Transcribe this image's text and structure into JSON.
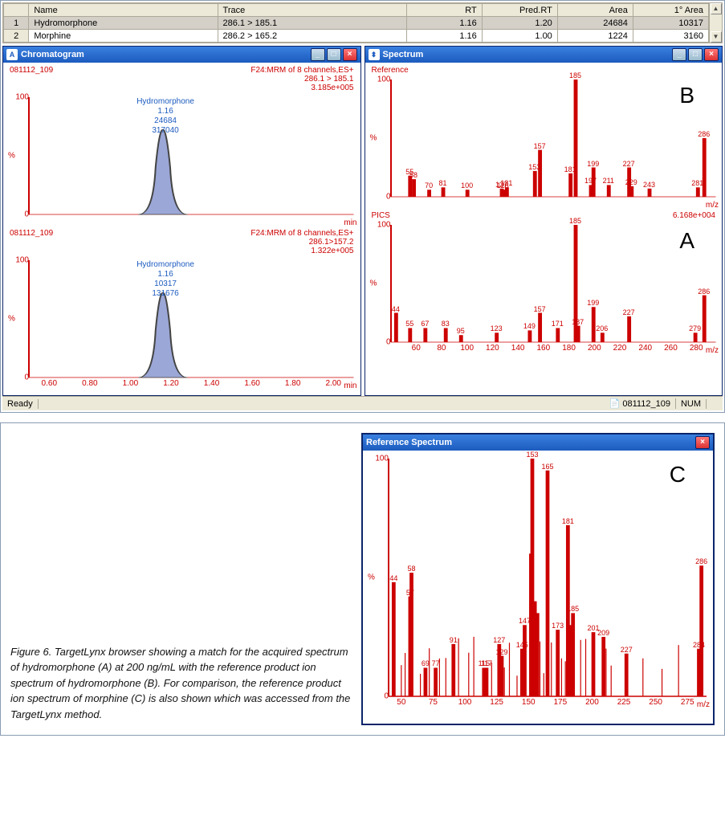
{
  "table": {
    "columns": [
      "",
      "Name",
      "Trace",
      "RT",
      "Pred.RT",
      "Area",
      "1° Area"
    ],
    "rows": [
      {
        "num": "1",
        "name": "Hydromorphone",
        "trace": "286.1 > 185.1",
        "rt": "1.16",
        "pred": "1.20",
        "area": "24684",
        "parea": "10317",
        "selected": true
      },
      {
        "num": "2",
        "name": "Morphine",
        "trace": "286.2 > 165.2",
        "rt": "1.16",
        "pred": "1.00",
        "area": "1224",
        "parea": "3160",
        "selected": false
      }
    ]
  },
  "chromatogram": {
    "title": "Chromatogram",
    "sample": "081112_109",
    "x_ticks": [
      "0.60",
      "0.80",
      "1.00",
      "1.20",
      "1.40",
      "1.60",
      "1.80",
      "2.00"
    ],
    "x_range": [
      0.5,
      2.1
    ],
    "x_unit": "min",
    "y_ticks": [
      "0",
      "100"
    ],
    "y_label": "%",
    "panels": [
      {
        "header_right": [
          "F24:MRM of 8 channels,ES+",
          "286.1 > 185.1",
          "3.185e+005"
        ],
        "peak_label": [
          "Hydromorphone",
          "1.16",
          "24684",
          "317040"
        ],
        "peak_center": 1.16,
        "peak_height": 100,
        "peak_width": 0.12
      },
      {
        "header_right": [
          "F24:MRM of 8 channels,ES+",
          "286.1>157.2",
          "1.322e+005"
        ],
        "peak_label": [
          "Hydromorphone",
          "1.16",
          "10317",
          "131676"
        ],
        "peak_center": 1.16,
        "peak_height": 100,
        "peak_width": 0.12
      }
    ]
  },
  "spectrum": {
    "title": "Spectrum",
    "x_range": [
      40,
      295
    ],
    "x_ticks": [
      60,
      80,
      100,
      120,
      140,
      160,
      180,
      200,
      220,
      240,
      260,
      280
    ],
    "x_unit": "m/z",
    "y_ticks": [
      "0",
      "100"
    ],
    "y_label": "%",
    "panels": [
      {
        "top_left": "Reference",
        "top_right": "",
        "letter": "B",
        "peaks": [
          {
            "mz": 55,
            "i": 18,
            "lbl": "55"
          },
          {
            "mz": 58,
            "i": 15,
            "lbl": "58"
          },
          {
            "mz": 70,
            "i": 6,
            "lbl": "70"
          },
          {
            "mz": 81,
            "i": 8,
            "lbl": "81"
          },
          {
            "mz": 100,
            "i": 6,
            "lbl": "100"
          },
          {
            "mz": 127,
            "i": 7,
            "lbl": "127"
          },
          {
            "mz": 128,
            "i": 6,
            "lbl": "128"
          },
          {
            "mz": 131,
            "i": 8,
            "lbl": "131"
          },
          {
            "mz": 153,
            "i": 22,
            "lbl": "153"
          },
          {
            "mz": 157,
            "i": 40,
            "lbl": "157"
          },
          {
            "mz": 181,
            "i": 20,
            "lbl": "181"
          },
          {
            "mz": 185,
            "i": 100,
            "lbl": "185"
          },
          {
            "mz": 197,
            "i": 10,
            "lbl": "197"
          },
          {
            "mz": 199,
            "i": 25,
            "lbl": "199"
          },
          {
            "mz": 211,
            "i": 10,
            "lbl": "211"
          },
          {
            "mz": 227,
            "i": 25,
            "lbl": "227"
          },
          {
            "mz": 229,
            "i": 9,
            "lbl": "229"
          },
          {
            "mz": 243,
            "i": 7,
            "lbl": "243"
          },
          {
            "mz": 281,
            "i": 8,
            "lbl": "281"
          },
          {
            "mz": 286,
            "i": 50,
            "lbl": "286"
          }
        ]
      },
      {
        "top_left": "PICS",
        "top_right": "6.168e+004",
        "letter": "A",
        "peaks": [
          {
            "mz": 44,
            "i": 25,
            "lbl": "44"
          },
          {
            "mz": 55,
            "i": 12,
            "lbl": "55"
          },
          {
            "mz": 67,
            "i": 12,
            "lbl": "67"
          },
          {
            "mz": 83,
            "i": 12,
            "lbl": "83"
          },
          {
            "mz": 95,
            "i": 6,
            "lbl": "95"
          },
          {
            "mz": 123,
            "i": 8,
            "lbl": "123"
          },
          {
            "mz": 149,
            "i": 10,
            "lbl": "149"
          },
          {
            "mz": 157,
            "i": 25,
            "lbl": "157"
          },
          {
            "mz": 171,
            "i": 12,
            "lbl": "171"
          },
          {
            "mz": 185,
            "i": 100,
            "lbl": "185"
          },
          {
            "mz": 187,
            "i": 14,
            "lbl": "187"
          },
          {
            "mz": 199,
            "i": 30,
            "lbl": "199"
          },
          {
            "mz": 206,
            "i": 8,
            "lbl": "206"
          },
          {
            "mz": 227,
            "i": 22,
            "lbl": "227"
          },
          {
            "mz": 279,
            "i": 8,
            "lbl": "279"
          },
          {
            "mz": 286,
            "i": 40,
            "lbl": "286"
          }
        ]
      }
    ]
  },
  "status": {
    "ready": "Ready",
    "sample": "081112_109",
    "num": "NUM"
  },
  "caption": "Figure 6. TargetLynx browser showing a match for the acquired spectrum of hydromorphone (A) at 200 ng/mL with the reference product ion spectrum of hydromorphone (B). For comparison, the reference product ion spectrum of morphine (C) is also shown which was accessed from the TargetLynx method.",
  "ref_spectrum": {
    "title": "Reference Spectrum",
    "letter": "C",
    "x_range": [
      40,
      290
    ],
    "x_ticks": [
      50,
      75,
      100,
      125,
      150,
      175,
      200,
      225,
      250,
      275
    ],
    "x_unit": "m/z",
    "y_ticks": [
      "0",
      "100"
    ],
    "y_label": "%",
    "peaks": [
      {
        "mz": 44,
        "i": 48,
        "lbl": "44"
      },
      {
        "mz": 57,
        "i": 42,
        "lbl": "57"
      },
      {
        "mz": 58,
        "i": 52,
        "lbl": "58"
      },
      {
        "mz": 69,
        "i": 12,
        "lbl": "69"
      },
      {
        "mz": 77,
        "i": 12,
        "lbl": "77"
      },
      {
        "mz": 91,
        "i": 22,
        "lbl": "91"
      },
      {
        "mz": 115,
        "i": 12,
        "lbl": "115"
      },
      {
        "mz": 117,
        "i": 12,
        "lbl": "117"
      },
      {
        "mz": 127,
        "i": 22,
        "lbl": "127"
      },
      {
        "mz": 129,
        "i": 17,
        "lbl": "129"
      },
      {
        "mz": 145,
        "i": 20,
        "lbl": "145"
      },
      {
        "mz": 147,
        "i": 30,
        "lbl": "147"
      },
      {
        "mz": 152,
        "i": 60
      },
      {
        "mz": 153,
        "i": 100,
        "lbl": "153"
      },
      {
        "mz": 155,
        "i": 40
      },
      {
        "mz": 157,
        "i": 35
      },
      {
        "mz": 165,
        "i": 95,
        "lbl": "165"
      },
      {
        "mz": 173,
        "i": 28,
        "lbl": "173"
      },
      {
        "mz": 181,
        "i": 72,
        "lbl": "181"
      },
      {
        "mz": 183,
        "i": 30
      },
      {
        "mz": 185,
        "i": 35,
        "lbl": "185"
      },
      {
        "mz": 201,
        "i": 27,
        "lbl": "201"
      },
      {
        "mz": 209,
        "i": 25,
        "lbl": "209"
      },
      {
        "mz": 227,
        "i": 18,
        "lbl": "227"
      },
      {
        "mz": 284,
        "i": 20,
        "lbl": "284"
      },
      {
        "mz": 286,
        "i": 55,
        "lbl": "286"
      }
    ],
    "extra_peaks": [
      50,
      53,
      65,
      72,
      80,
      85,
      95,
      103,
      107,
      121,
      131,
      135,
      141,
      159,
      162,
      168,
      176,
      179,
      191,
      195,
      211,
      215,
      240,
      255,
      268
    ]
  }
}
